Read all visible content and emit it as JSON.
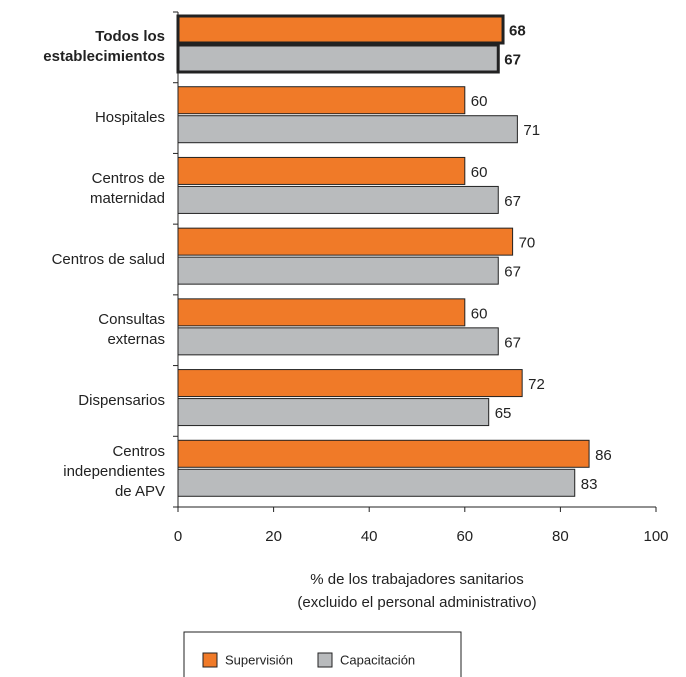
{
  "chart_data": {
    "type": "bar",
    "orientation": "horizontal",
    "categories": [
      "Todos los\nestablecimientos",
      "Hospitales",
      "Centros de\nmaternidad",
      "Centros de salud",
      "Consultas\nexternas",
      "Dispensarios",
      "Centros\nindependientes\nde APV"
    ],
    "series": [
      {
        "name": "Supervisión",
        "color": "#f07a28",
        "values": [
          68,
          60,
          60,
          70,
          60,
          72,
          86
        ]
      },
      {
        "name": "Capacitación",
        "color": "#b9bbbd",
        "values": [
          67,
          71,
          67,
          67,
          67,
          65,
          83
        ]
      }
    ],
    "xlabel": "% de los trabajadores sanitarios\n(excluido el personal administrativo)",
    "xlim": [
      0,
      100
    ],
    "xticks": [
      0,
      20,
      40,
      60,
      80,
      100
    ],
    "grid": false,
    "legend": "bottom"
  }
}
